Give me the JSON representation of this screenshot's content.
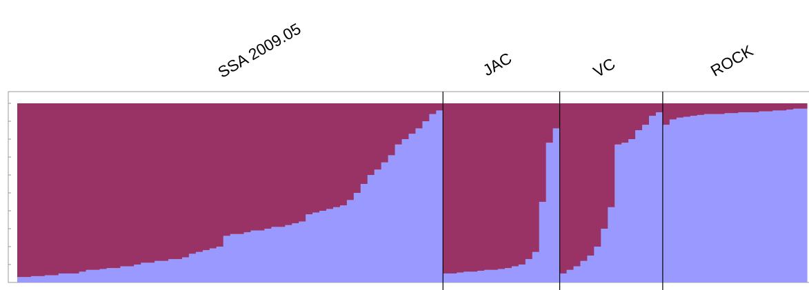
{
  "chart_data": {
    "type": "bar",
    "stacked": true,
    "ylim": [
      0,
      1
    ],
    "yticks": [
      0,
      0.1,
      0.2,
      0.3,
      0.4,
      0.5,
      0.6,
      0.7,
      0.8,
      0.9,
      1
    ],
    "groups": [
      {
        "label": "SSA 2009.05",
        "series": [
          {
            "color": "#9999ff",
            "values": [
              0.03,
              0.03,
              0.035,
              0.035,
              0.04,
              0.04,
              0.05,
              0.05,
              0.05,
              0.06,
              0.07,
              0.07,
              0.075,
              0.08,
              0.08,
              0.09,
              0.09,
              0.1,
              0.11,
              0.11,
              0.12,
              0.12,
              0.13,
              0.13,
              0.14,
              0.16,
              0.17,
              0.18,
              0.19,
              0.2,
              0.26,
              0.27,
              0.27,
              0.28,
              0.29,
              0.29,
              0.3,
              0.31,
              0.31,
              0.32,
              0.33,
              0.34,
              0.38,
              0.39,
              0.4,
              0.41,
              0.42,
              0.43,
              0.46,
              0.5,
              0.55,
              0.6,
              0.63,
              0.67,
              0.71,
              0.77,
              0.8,
              0.83,
              0.86,
              0.9,
              0.94,
              0.96
            ]
          },
          {
            "color": "#993366",
            "values": [
              0.97,
              0.97,
              0.965,
              0.965,
              0.96,
              0.96,
              0.95,
              0.95,
              0.95,
              0.94,
              0.93,
              0.93,
              0.925,
              0.92,
              0.92,
              0.91,
              0.91,
              0.9,
              0.89,
              0.89,
              0.88,
              0.88,
              0.87,
              0.87,
              0.86,
              0.84,
              0.83,
              0.82,
              0.81,
              0.8,
              0.74,
              0.73,
              0.73,
              0.72,
              0.71,
              0.71,
              0.7,
              0.69,
              0.69,
              0.68,
              0.67,
              0.66,
              0.62,
              0.61,
              0.6,
              0.59,
              0.58,
              0.57,
              0.54,
              0.5,
              0.45,
              0.4,
              0.37,
              0.33,
              0.29,
              0.23,
              0.2,
              0.17,
              0.14,
              0.1,
              0.06,
              0.04
            ]
          }
        ]
      },
      {
        "label": "JAC",
        "series": [
          {
            "color": "#9999ff",
            "values": [
              0.05,
              0.05,
              0.055,
              0.06,
              0.06,
              0.065,
              0.07,
              0.07,
              0.075,
              0.08,
              0.09,
              0.1,
              0.13,
              0.17,
              0.45,
              0.78,
              0.86
            ]
          },
          {
            "color": "#993366",
            "values": [
              0.95,
              0.95,
              0.945,
              0.94,
              0.94,
              0.935,
              0.93,
              0.93,
              0.925,
              0.92,
              0.91,
              0.9,
              0.87,
              0.83,
              0.55,
              0.22,
              0.14
            ]
          }
        ]
      },
      {
        "label": "VC",
        "series": [
          {
            "color": "#9999ff",
            "values": [
              0.05,
              0.07,
              0.09,
              0.12,
              0.15,
              0.2,
              0.3,
              0.42,
              0.77,
              0.78,
              0.8,
              0.85,
              0.88,
              0.93,
              0.95
            ]
          },
          {
            "color": "#993366",
            "values": [
              0.95,
              0.93,
              0.91,
              0.88,
              0.85,
              0.8,
              0.7,
              0.58,
              0.23,
              0.22,
              0.2,
              0.15,
              0.12,
              0.07,
              0.05
            ]
          }
        ]
      },
      {
        "label": "ROCK",
        "series": [
          {
            "color": "#9999ff",
            "values": [
              0.88,
              0.91,
              0.92,
              0.925,
              0.93,
              0.935,
              0.94,
              0.94,
              0.94,
              0.945,
              0.945,
              0.95,
              0.95,
              0.95,
              0.955,
              0.955,
              0.96,
              0.96,
              0.965,
              0.97,
              0.97
            ]
          },
          {
            "color": "#993366",
            "values": [
              0.12,
              0.09,
              0.08,
              0.075,
              0.07,
              0.065,
              0.06,
              0.06,
              0.06,
              0.055,
              0.055,
              0.05,
              0.05,
              0.05,
              0.045,
              0.045,
              0.04,
              0.04,
              0.035,
              0.03,
              0.03
            ]
          }
        ]
      }
    ]
  }
}
